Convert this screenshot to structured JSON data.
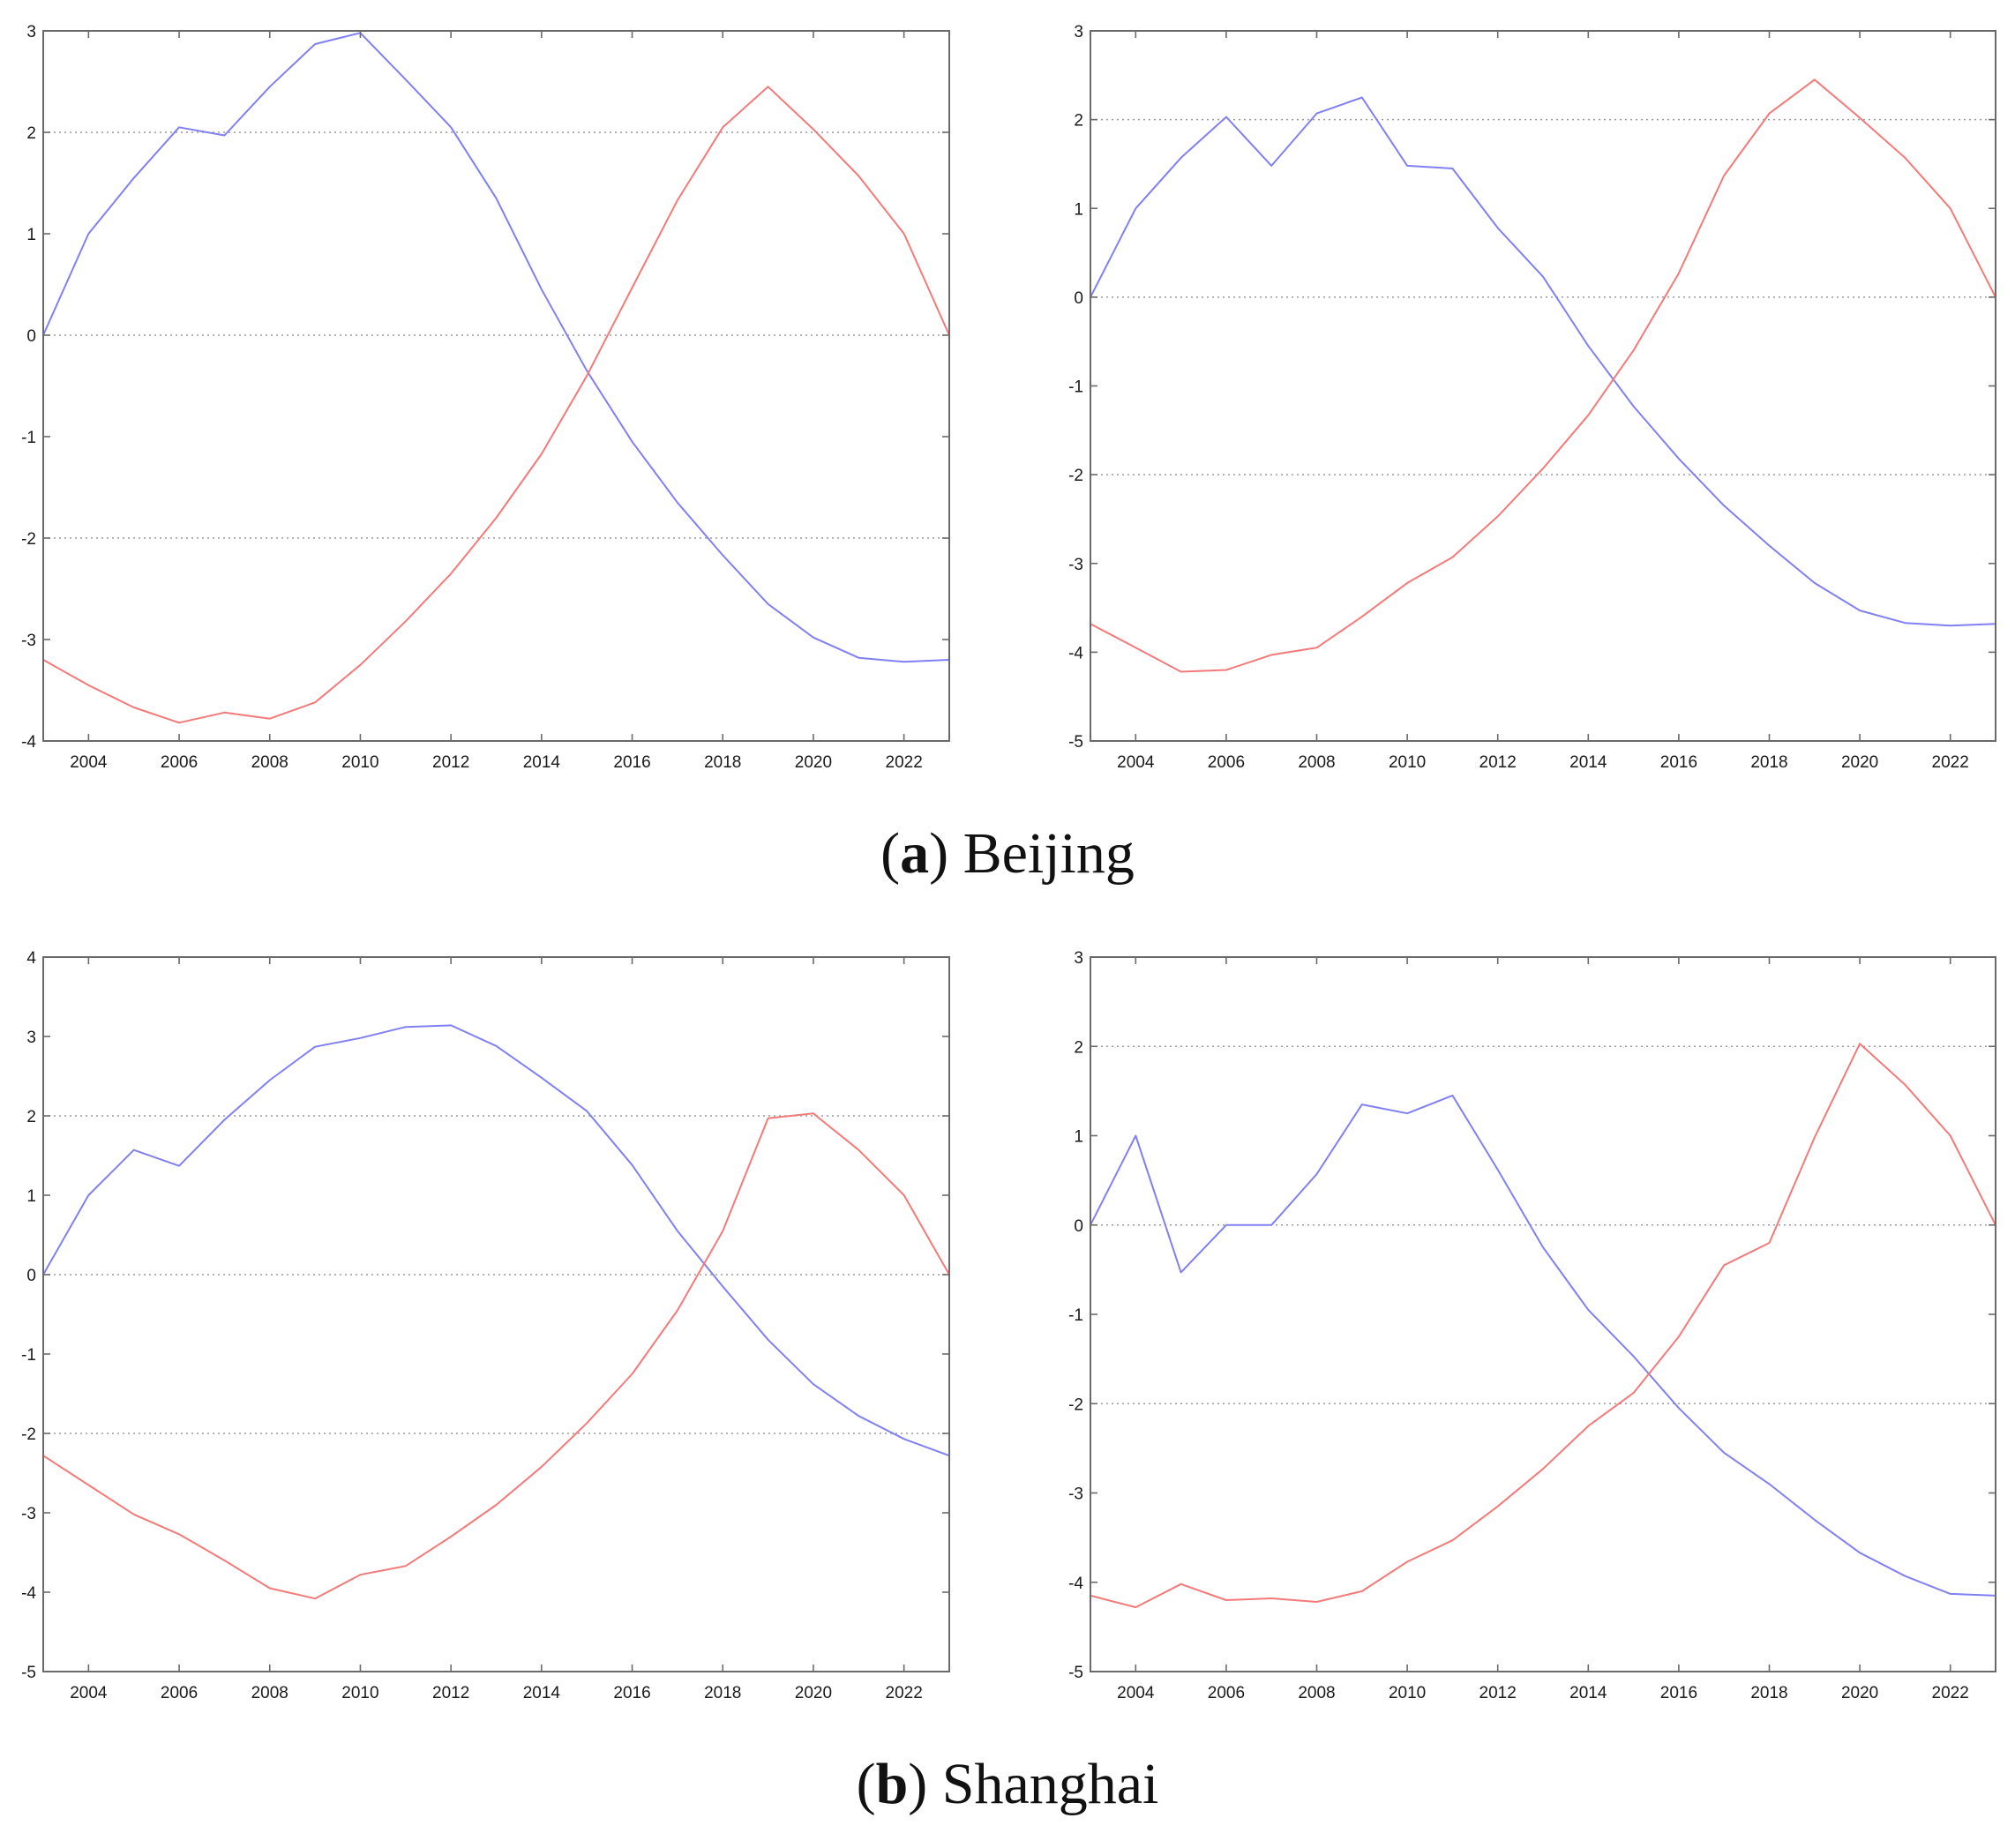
{
  "captions": [
    {
      "letter": "a",
      "text": "Beijing"
    },
    {
      "letter": "b",
      "text": "Shanghai"
    }
  ],
  "colors": {
    "series_1": "#8080f4",
    "series_2": "#f47a7a"
  },
  "chart_data": [
    {
      "type": "line",
      "panel": "a-left",
      "xlim": [
        2003,
        2023
      ],
      "ylim": [
        -4,
        3
      ],
      "xticks": [
        2004,
        2006,
        2008,
        2010,
        2012,
        2014,
        2016,
        2018,
        2020,
        2022
      ],
      "yticks": [
        -4,
        -3,
        -2,
        -1,
        0,
        1,
        2,
        3
      ],
      "grid_y": [
        2,
        0,
        -2
      ],
      "x": [
        2003,
        2004,
        2005,
        2006,
        2007,
        2008,
        2009,
        2010,
        2011,
        2012,
        2013,
        2014,
        2015,
        2016,
        2017,
        2018,
        2019,
        2020,
        2021,
        2022,
        2023
      ],
      "series": [
        {
          "color": "#8080f4",
          "values": [
            0,
            1,
            1.55,
            2.05,
            1.97,
            2.45,
            2.87,
            2.98,
            2.52,
            2.05,
            1.35,
            0.45,
            -0.35,
            -1.05,
            -1.65,
            -2.17,
            -2.65,
            -2.98,
            -3.18,
            -3.22,
            -3.2
          ]
        },
        {
          "color": "#f47a7a",
          "values": [
            -3.2,
            -3.45,
            -3.67,
            -3.82,
            -3.72,
            -3.78,
            -3.62,
            -3.25,
            -2.82,
            -2.35,
            -1.8,
            -1.17,
            -0.4,
            0.47,
            1.33,
            2.05,
            2.45,
            2.03,
            1.57,
            1.0,
            0
          ]
        }
      ]
    },
    {
      "type": "line",
      "panel": "a-right",
      "xlim": [
        2003,
        2023
      ],
      "ylim": [
        -5,
        3
      ],
      "xticks": [
        2004,
        2006,
        2008,
        2010,
        2012,
        2014,
        2016,
        2018,
        2020,
        2022
      ],
      "yticks": [
        -5,
        -4,
        -3,
        -2,
        -1,
        0,
        1,
        2,
        3
      ],
      "grid_y": [
        2,
        0,
        -2
      ],
      "x": [
        2003,
        2004,
        2005,
        2006,
        2007,
        2008,
        2009,
        2010,
        2011,
        2012,
        2013,
        2014,
        2015,
        2016,
        2017,
        2018,
        2019,
        2020,
        2021,
        2022,
        2023
      ],
      "series": [
        {
          "color": "#8080f4",
          "values": [
            0,
            1,
            1.57,
            2.03,
            1.48,
            2.07,
            2.25,
            1.48,
            1.45,
            0.78,
            0.23,
            -0.55,
            -1.23,
            -1.82,
            -2.35,
            -2.8,
            -3.22,
            -3.53,
            -3.67,
            -3.7,
            -3.68
          ]
        },
        {
          "color": "#f47a7a",
          "values": [
            -3.68,
            -3.95,
            -4.22,
            -4.2,
            -4.03,
            -3.95,
            -3.6,
            -3.22,
            -2.93,
            -2.47,
            -1.93,
            -1.33,
            -0.6,
            0.27,
            1.37,
            2.07,
            2.45,
            2.02,
            1.57,
            1.0,
            0
          ]
        }
      ]
    },
    {
      "type": "line",
      "panel": "b-left",
      "xlim": [
        2003,
        2023
      ],
      "ylim": [
        -5,
        4
      ],
      "xticks": [
        2004,
        2006,
        2008,
        2010,
        2012,
        2014,
        2016,
        2018,
        2020,
        2022
      ],
      "yticks": [
        -5,
        -4,
        -3,
        -2,
        -1,
        0,
        1,
        2,
        3,
        4
      ],
      "grid_y": [
        2,
        0,
        -2
      ],
      "x": [
        2003,
        2004,
        2005,
        2006,
        2007,
        2008,
        2009,
        2010,
        2011,
        2012,
        2013,
        2014,
        2015,
        2016,
        2017,
        2018,
        2019,
        2020,
        2021,
        2022,
        2023
      ],
      "series": [
        {
          "color": "#8080f4",
          "values": [
            0,
            1,
            1.57,
            1.37,
            1.95,
            2.45,
            2.87,
            2.98,
            3.12,
            3.14,
            2.88,
            2.48,
            2.06,
            1.38,
            0.55,
            -0.15,
            -0.82,
            -1.38,
            -1.78,
            -2.07,
            -2.28
          ]
        },
        {
          "color": "#f47a7a",
          "values": [
            -2.28,
            -2.65,
            -3.02,
            -3.27,
            -3.6,
            -3.95,
            -4.08,
            -3.78,
            -3.67,
            -3.3,
            -2.9,
            -2.42,
            -1.87,
            -1.25,
            -0.45,
            0.55,
            1.97,
            2.03,
            1.57,
            1.0,
            0
          ]
        }
      ]
    },
    {
      "type": "line",
      "panel": "b-right",
      "xlim": [
        2003,
        2023
      ],
      "ylim": [
        -5,
        3
      ],
      "xticks": [
        2004,
        2006,
        2008,
        2010,
        2012,
        2014,
        2016,
        2018,
        2020,
        2022
      ],
      "yticks": [
        -5,
        -4,
        -3,
        -2,
        -1,
        0,
        1,
        2,
        3
      ],
      "grid_y": [
        2,
        0,
        -2
      ],
      "x": [
        2003,
        2004,
        2005,
        2006,
        2007,
        2008,
        2009,
        2010,
        2011,
        2012,
        2013,
        2014,
        2015,
        2016,
        2017,
        2018,
        2019,
        2020,
        2021,
        2022,
        2023
      ],
      "series": [
        {
          "color": "#8080f4",
          "values": [
            0,
            1,
            -0.53,
            0,
            0,
            0.57,
            1.35,
            1.25,
            1.45,
            0.62,
            -0.25,
            -0.95,
            -1.47,
            -2.05,
            -2.55,
            -2.9,
            -3.3,
            -3.67,
            -3.93,
            -4.13,
            -4.15
          ]
        },
        {
          "color": "#f47a7a",
          "values": [
            -4.15,
            -4.28,
            -4.02,
            -4.2,
            -4.18,
            -4.22,
            -4.1,
            -3.77,
            -3.53,
            -3.15,
            -2.73,
            -2.25,
            -1.88,
            -1.25,
            -0.45,
            -0.2,
            0.98,
            2.03,
            1.57,
            1.0,
            0
          ]
        }
      ]
    }
  ]
}
